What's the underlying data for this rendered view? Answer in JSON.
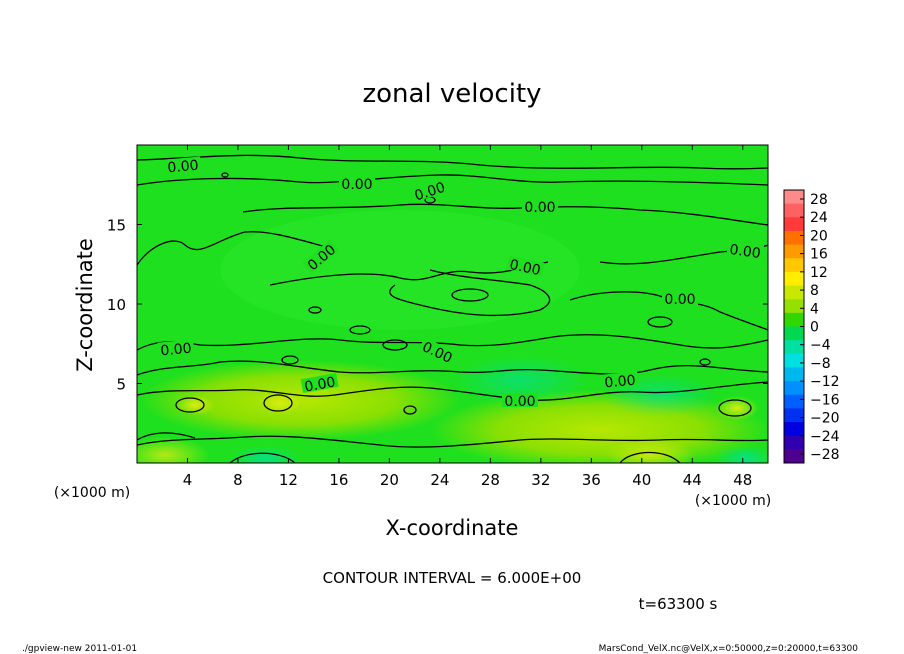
{
  "chart_data": {
    "type": "heatmap",
    "title": "zonal velocity",
    "xlabel": "X-coordinate",
    "ylabel": "Z-coordinate",
    "x_unit": "(×1000 m)",
    "y_unit": "(×1000 m)",
    "xlim": [
      0,
      50
    ],
    "ylim": [
      0,
      20
    ],
    "xticks": [
      "4",
      "8",
      "12",
      "16",
      "20",
      "24",
      "28",
      "32",
      "36",
      "40",
      "44",
      "48"
    ],
    "yticks": [
      "5",
      "10",
      "15"
    ],
    "contour_labels": [
      "0.00",
      "0.00",
      "0.00",
      "0.00",
      "0.00",
      "0.00",
      "0.00",
      "0.00",
      "0.00",
      "0.00",
      "0.00",
      "0.00",
      "0.00"
    ],
    "colorbar": {
      "labels": [
        "28",
        "24",
        "20",
        "16",
        "12",
        "8",
        "4",
        "0",
        "−4",
        "−8",
        "−12",
        "−16",
        "−20",
        "−24",
        "−28"
      ],
      "colors": [
        "#ff8a8a",
        "#ff6060",
        "#ff3a3a",
        "#ff7000",
        "#ff9a00",
        "#ffc800",
        "#ffee00",
        "#c8e800",
        "#96e000",
        "#30d800",
        "#00d850",
        "#00e0a0",
        "#00e0e0",
        "#00b8f0",
        "#0090ff",
        "#0060ff",
        "#0030f0",
        "#0000e0",
        "#3000b0",
        "#500090"
      ]
    },
    "grid": false
  },
  "annotations": {
    "contour_interval": "CONTOUR INTERVAL = 6.000E+00",
    "time": "t=63300 s",
    "footer_left": "./gpview-new  2011-01-01",
    "footer_right": "MarsCond_VelX.nc@VelX,x=0:50000,z=0:20000,t=63300"
  }
}
